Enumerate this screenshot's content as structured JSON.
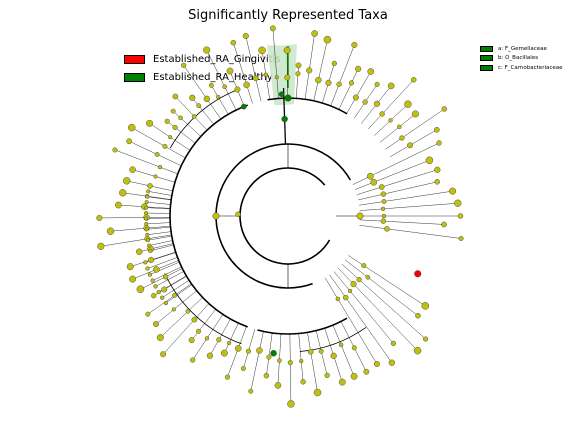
{
  "title": "Significantly Represented Taxa",
  "legend": [
    {
      "label": "Established_RA_Gingivitis",
      "color": "#ff0000"
    },
    {
      "label": "Established_RA_Healthy",
      "color": "#008000"
    }
  ],
  "key": [
    {
      "label": "a: F_Gemellaceae",
      "color": "#008000"
    },
    {
      "label": "b: O_Bacillales",
      "color": "#008000"
    },
    {
      "label": "c: F_Carnobacteriaceae",
      "color": "#008000"
    }
  ],
  "colors": {
    "node": "#bfbf10",
    "gingivitis": "#ff0000",
    "healthy": "#008000",
    "highlight": "#c8e6c8"
  }
}
